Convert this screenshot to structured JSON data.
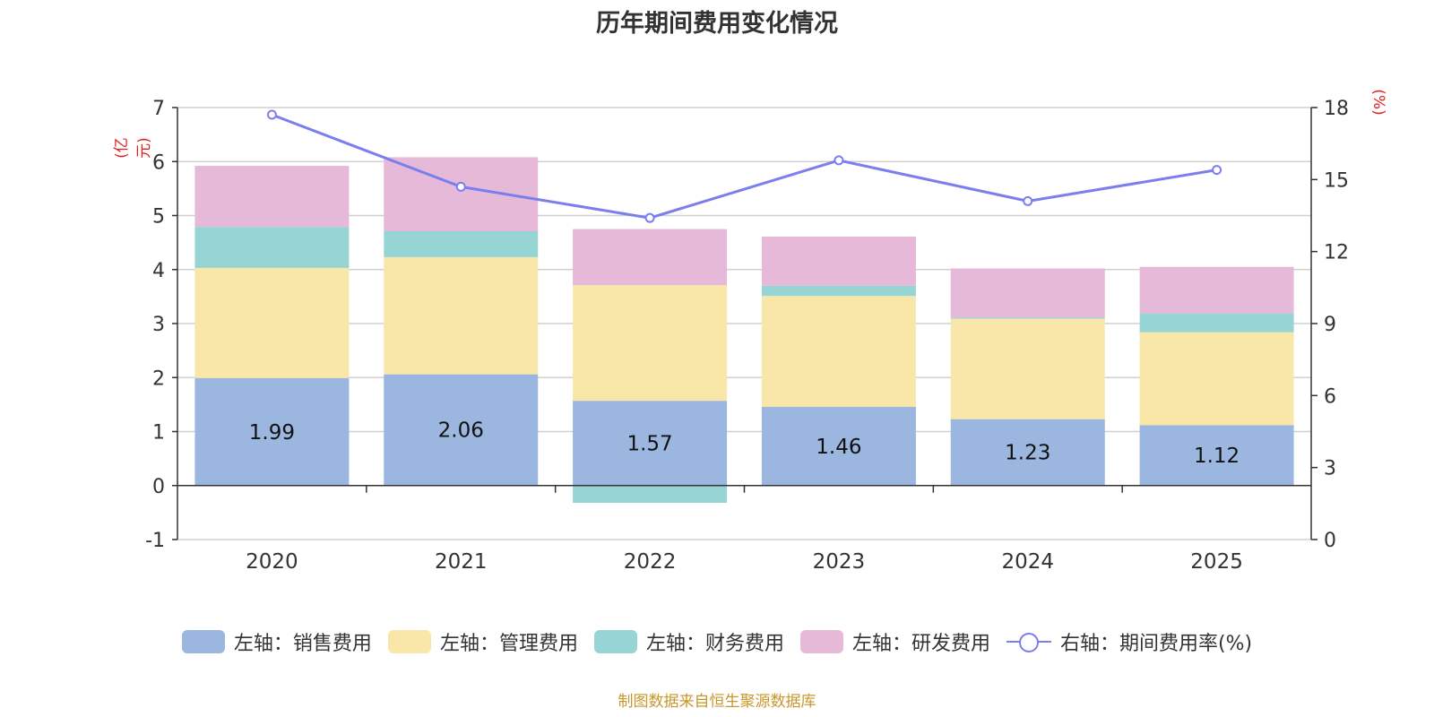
{
  "chart_data": {
    "type": "bar",
    "stacked": true,
    "title": "历年期间费用变化情况",
    "categories": [
      "2020",
      "2021",
      "2022",
      "2023",
      "2024",
      "2025"
    ],
    "series": [
      {
        "name": "左轴：销售费用",
        "axis": "left",
        "color": "#9bb7e0",
        "values": [
          1.99,
          2.06,
          1.57,
          1.46,
          1.23,
          1.12
        ],
        "labels": [
          "1.99",
          "2.06",
          "1.57",
          "1.46",
          "1.23",
          "1.12"
        ]
      },
      {
        "name": "左轴：管理费用",
        "axis": "left",
        "color": "#f8e7a8",
        "values": [
          2.04,
          2.17,
          2.14,
          2.05,
          1.86,
          1.72
        ]
      },
      {
        "name": "左轴：财务费用",
        "axis": "left",
        "color": "#97d5d5",
        "values": [
          0.76,
          0.48,
          -0.32,
          0.19,
          0.02,
          0.35
        ]
      },
      {
        "name": "左轴：研发费用",
        "axis": "left",
        "color": "#e7b9d9",
        "values": [
          1.13,
          1.37,
          1.04,
          0.91,
          0.91,
          0.86
        ]
      },
      {
        "name": "右轴：期间费用率(%)",
        "axis": "right",
        "type": "line",
        "color": "#7b7fee",
        "values": [
          17.7,
          14.7,
          13.4,
          15.8,
          14.1,
          15.4
        ]
      }
    ],
    "left_axis": {
      "unit": "(亿元)",
      "ylim": [
        -1,
        7
      ],
      "ticks": [
        -1,
        0,
        1,
        2,
        3,
        4,
        5,
        6,
        7
      ]
    },
    "right_axis": {
      "unit": "(%)",
      "ylim": [
        0,
        18
      ],
      "ticks": [
        0,
        3,
        6,
        9,
        12,
        15,
        18
      ]
    },
    "grid": true,
    "legend_position": "bottom",
    "source": "制图数据来自恒生聚源数据库"
  }
}
